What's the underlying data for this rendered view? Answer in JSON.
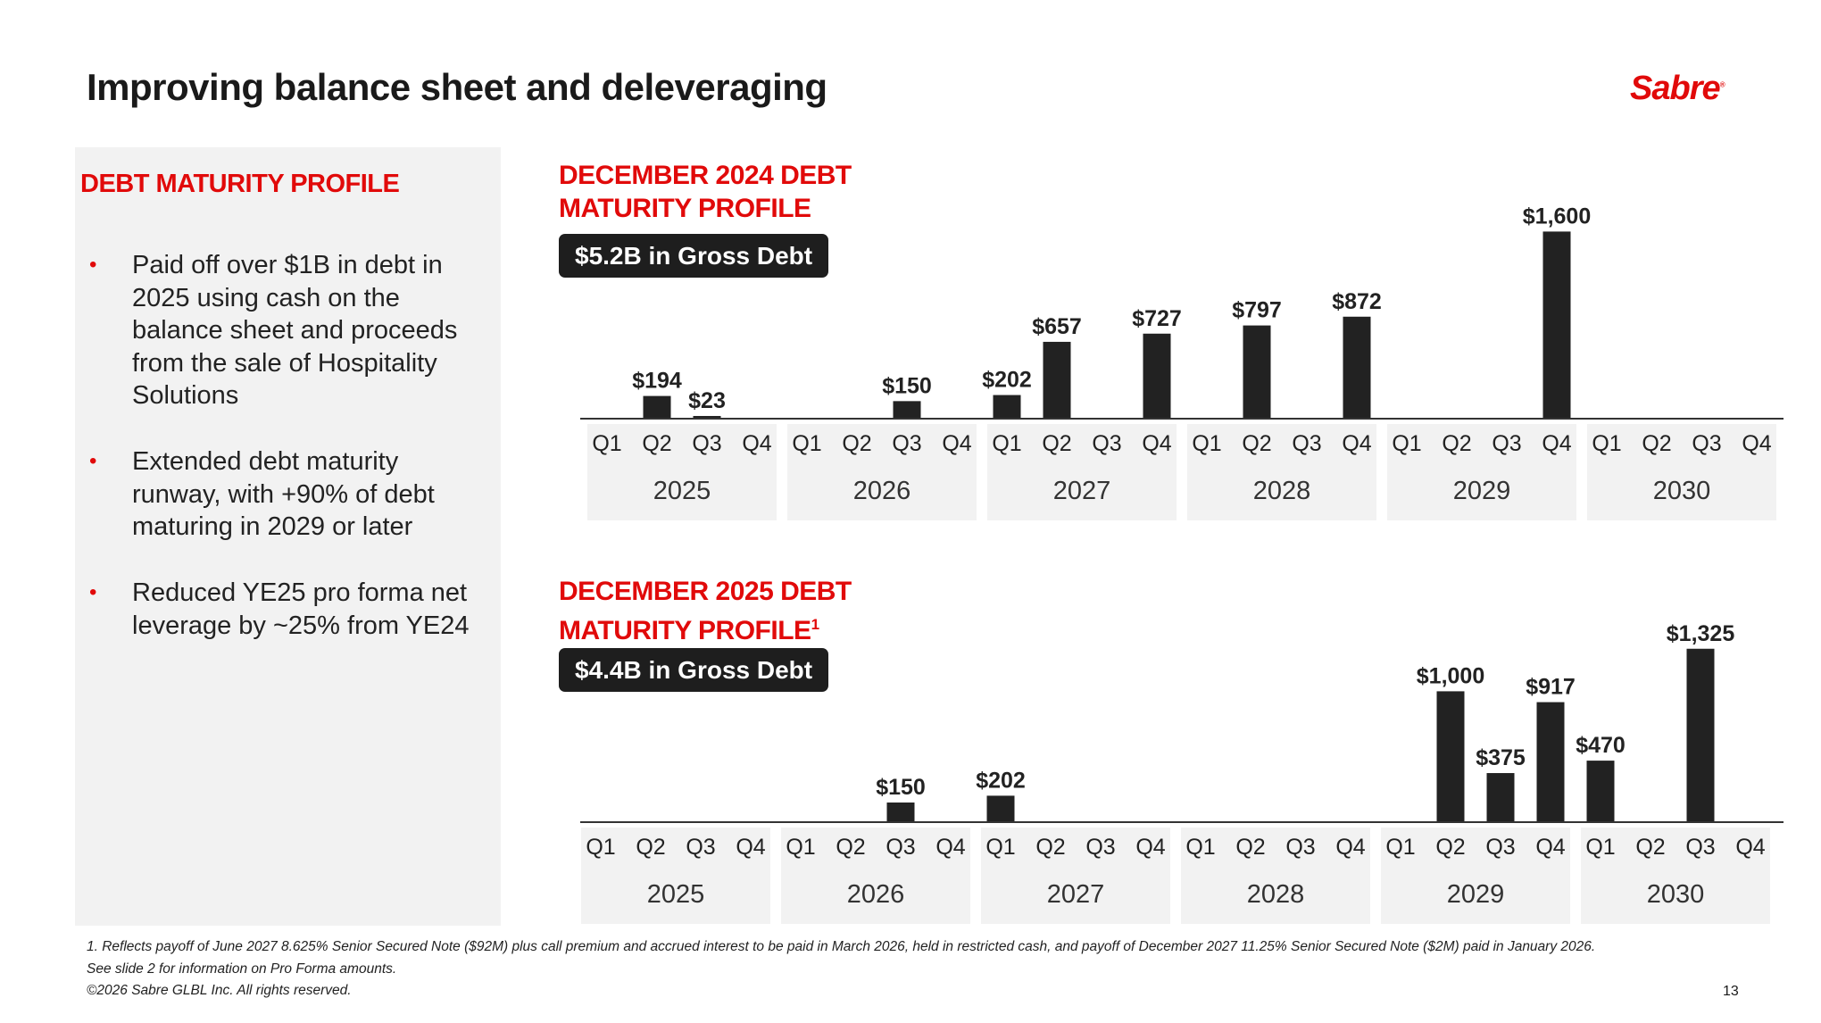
{
  "title": "Improving balance sheet and deleveraging",
  "logo": "Sabre",
  "panel": {
    "title": "DEBT MATURITY PROFILE",
    "bullets": [
      "Paid off over $1B in debt in 2025 using cash on the balance sheet and proceeds from the sale of Hospitality Solutions",
      "Extended debt maturity runway, with +90% of debt maturing in 2029 or later",
      "Reduced YE25 pro forma net leverage by ~25% from YE24"
    ]
  },
  "chart_data": [
    {
      "type": "bar",
      "title": "DECEMBER 2024 DEBT MATURITY PROFILE",
      "title_line1": "DECEMBER 2024 DEBT",
      "title_line2": "MATURITY PROFILE",
      "footnote_mark": "",
      "badge": "$5.2B in Gross Debt",
      "years": [
        "2025",
        "2026",
        "2027",
        "2028",
        "2029",
        "2030"
      ],
      "quarters": [
        "Q1",
        "Q2",
        "Q3",
        "Q4"
      ],
      "values": [
        0,
        194,
        23,
        0,
        0,
        0,
        150,
        0,
        202,
        657,
        0,
        727,
        0,
        797,
        0,
        872,
        0,
        0,
        0,
        1600,
        0,
        0,
        0,
        0
      ],
      "labels": [
        "",
        "$194",
        "$23",
        "",
        "",
        "",
        "$150",
        "",
        "$202",
        "$657",
        "",
        "$727",
        "",
        "$797",
        "",
        "$872",
        "",
        "",
        "",
        "$1,600",
        "",
        "",
        "",
        ""
      ],
      "unit": "$M",
      "bar_color": "#222222"
    },
    {
      "type": "bar",
      "title": "DECEMBER 2025 DEBT MATURITY PROFILE",
      "title_line1": "DECEMBER 2025 DEBT",
      "title_line2": "MATURITY PROFILE",
      "footnote_mark": "1",
      "badge": "$4.4B in Gross Debt",
      "years": [
        "2025",
        "2026",
        "2027",
        "2028",
        "2029",
        "2030"
      ],
      "quarters": [
        "Q1",
        "Q2",
        "Q3",
        "Q4"
      ],
      "values": [
        0,
        0,
        0,
        0,
        0,
        0,
        150,
        0,
        202,
        0,
        0,
        0,
        0,
        0,
        0,
        0,
        0,
        1000,
        375,
        917,
        470,
        0,
        1325,
        0
      ],
      "labels": [
        "",
        "",
        "",
        "",
        "",
        "",
        "$150",
        "",
        "$202",
        "",
        "",
        "",
        "",
        "",
        "",
        "",
        "",
        "$1,000",
        "$375",
        "$917",
        "$470",
        "",
        "$1,325",
        ""
      ],
      "unit": "$M",
      "bar_color": "#222222"
    }
  ],
  "footnotes": [
    "1. Reflects payoff of June 2027 8.625% Senior Secured Note ($92M) plus call premium and accrued interest to be paid in March 2026, held in restricted cash, and payoff of December 2027 11.25% Senior Secured Note ($2M) paid in January 2026.",
    "See slide 2 for information on Pro Forma amounts.",
    "©2026 Sabre GLBL Inc. All rights reserved."
  ],
  "page_number": "13"
}
